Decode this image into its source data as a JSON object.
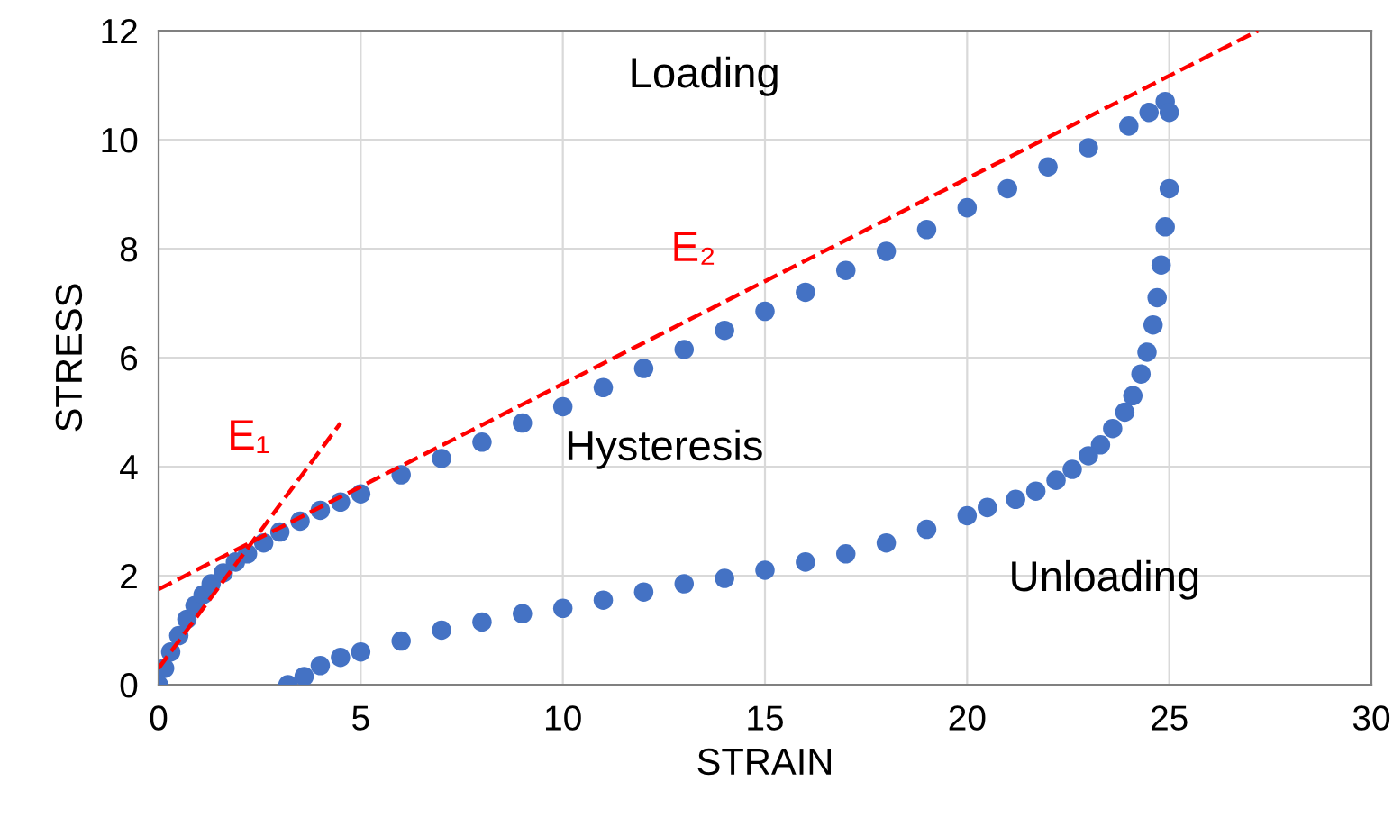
{
  "chart_data": {
    "type": "scatter",
    "xlabel": "STRAIN",
    "ylabel": "STRESS",
    "xlim": [
      0,
      30
    ],
    "ylim": [
      0,
      12
    ],
    "xticks": [
      0,
      5,
      10,
      15,
      20,
      25,
      30
    ],
    "yticks": [
      0,
      2,
      4,
      6,
      8,
      10,
      12
    ],
    "grid": true,
    "series": [
      {
        "color": "#4472c4",
        "marker": "circle",
        "x": [
          0,
          0.15,
          0.3,
          0.5,
          0.7,
          0.9,
          1.1,
          1.3,
          1.6,
          1.9,
          2.2,
          2.6,
          3,
          3.5,
          4,
          4.5,
          5,
          6,
          7,
          8,
          9,
          10,
          11,
          12,
          13,
          14,
          15,
          16,
          17,
          18,
          19,
          20,
          21,
          22,
          23,
          24,
          24.5,
          24.9
        ],
        "values": [
          0,
          0.3,
          0.6,
          0.9,
          1.2,
          1.45,
          1.65,
          1.85,
          2.05,
          2.25,
          2.4,
          2.6,
          2.8,
          3.0,
          3.2,
          3.35,
          3.5,
          3.85,
          4.15,
          4.45,
          4.8,
          5.1,
          5.45,
          5.8,
          6.15,
          6.5,
          6.85,
          7.2,
          7.6,
          7.95,
          8.35,
          8.75,
          9.1,
          9.5,
          9.85,
          10.25,
          10.5,
          10.7
        ]
      },
      {
        "color": "#4472c4",
        "marker": "circle",
        "x": [
          25,
          25,
          24.9,
          24.8,
          24.7,
          24.6,
          24.45,
          24.3,
          24.1,
          23.9,
          23.6,
          23.3,
          23,
          22.6,
          22.2,
          21.7,
          21.2,
          20.5,
          20,
          19,
          18,
          17,
          16,
          15,
          14,
          13,
          12,
          11,
          10,
          9,
          8,
          7,
          6,
          5,
          4.5,
          4,
          3.6,
          3.2
        ],
        "values": [
          10.5,
          9.1,
          8.4,
          7.7,
          7.1,
          6.6,
          6.1,
          5.7,
          5.3,
          5.0,
          4.7,
          4.4,
          4.2,
          3.95,
          3.75,
          3.55,
          3.4,
          3.25,
          3.1,
          2.85,
          2.6,
          2.4,
          2.25,
          2.1,
          1.95,
          1.85,
          1.7,
          1.55,
          1.4,
          1.3,
          1.15,
          1.0,
          0.8,
          0.6,
          0.5,
          0.35,
          0.15,
          0
        ]
      },
      {
        "type": "line",
        "name": "E₁",
        "color": "#ff0000",
        "line_style": "dashed",
        "x": [
          0,
          4.5
        ],
        "values": [
          0.3,
          4.8
        ]
      },
      {
        "type": "line",
        "name": "E₂",
        "color": "#ff0000",
        "line_style": "dashed",
        "x": [
          0,
          27.2
        ],
        "values": [
          1.75,
          12
        ]
      }
    ],
    "annotations": [
      "Loading",
      "Hysteresis",
      "Unloading"
    ]
  }
}
